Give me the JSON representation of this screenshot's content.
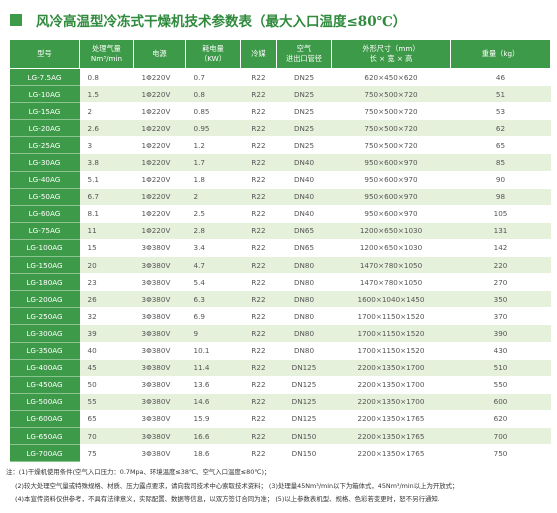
{
  "title": "风冷高温型冷冻式干燥机技术参数表（最大入口温度≤80℃）",
  "table": {
    "header": [
      [
        "型号"
      ],
      [
        "处理气量",
        "Nm³/min"
      ],
      [
        "电源"
      ],
      [
        "耗电量",
        "（KW）"
      ],
      [
        "冷媒"
      ],
      [
        "空气",
        "进出口管径"
      ],
      [
        "外形尺寸（mm）",
        "长 × 宽 × 高"
      ],
      [
        "重量（kg）"
      ]
    ],
    "rows": [
      [
        "LG-7.5AG",
        "0.8",
        "1Φ220V",
        "0.7",
        "R22",
        "DN25",
        "620×450×620",
        "46"
      ],
      [
        "LG-10AG",
        "1.5",
        "1Φ220V",
        "0.8",
        "R22",
        "DN25",
        "750×500×720",
        "51"
      ],
      [
        "LG-15AG",
        "2",
        "1Φ220V",
        "0.85",
        "R22",
        "DN25",
        "750×500×720",
        "53"
      ],
      [
        "LG-20AG",
        "2.6",
        "1Φ220V",
        "0.95",
        "R22",
        "DN25",
        "750×500×720",
        "62"
      ],
      [
        "LG-25AG",
        "3",
        "1Φ220V",
        "1.2",
        "R22",
        "DN25",
        "750×500×720",
        "65"
      ],
      [
        "LG-30AG",
        "3.8",
        "1Φ220V",
        "1.7",
        "R22",
        "DN40",
        "950×600×970",
        "85"
      ],
      [
        "LG-40AG",
        "5.1",
        "1Φ220V",
        "1.8",
        "R22",
        "DN40",
        "950×600×970",
        "90"
      ],
      [
        "LG-50AG",
        "6.7",
        "1Φ220V",
        "2",
        "R22",
        "DN40",
        "950×600×970",
        "98"
      ],
      [
        "LG-60AG",
        "8.1",
        "1Φ220V",
        "2.5",
        "R22",
        "DN40",
        "950×600×970",
        "105"
      ],
      [
        "LG-75AG",
        "11",
        "1Φ220V",
        "2.8",
        "R22",
        "DN65",
        "1200×650×1030",
        "131"
      ],
      [
        "LG-100AG",
        "15",
        "3Φ380V",
        "3.4",
        "R22",
        "DN65",
        "1200×650×1030",
        "142"
      ],
      [
        "LG-150AG",
        "20",
        "3Φ380V",
        "4.7",
        "R22",
        "DN80",
        "1470×780×1050",
        "220"
      ],
      [
        "LG-180AG",
        "23",
        "3Φ380V",
        "5.4",
        "R22",
        "DN80",
        "1470×780×1050",
        "270"
      ],
      [
        "LG-200AG",
        "26",
        "3Φ380V",
        "6.3",
        "R22",
        "DN80",
        "1600×1040×1450",
        "350"
      ],
      [
        "LG-250AG",
        "32",
        "3Φ380V",
        "6.9",
        "R22",
        "DN80",
        "1700×1150×1520",
        "370"
      ],
      [
        "LG-300AG",
        "39",
        "3Φ380V",
        "9",
        "R22",
        "DN80",
        "1700×1150×1520",
        "390"
      ],
      [
        "LG-350AG",
        "40",
        "3Φ380V",
        "10.1",
        "R22",
        "DN80",
        "1700×1150×1520",
        "430"
      ],
      [
        "LG-400AG",
        "45",
        "3Φ380V",
        "11.4",
        "R22",
        "DN125",
        "2200×1350×1700",
        "510"
      ],
      [
        "LG-450AG",
        "50",
        "3Φ380V",
        "13.6",
        "R22",
        "DN125",
        "2200×1350×1700",
        "550"
      ],
      [
        "LG-500AG",
        "55",
        "3Φ380V",
        "14.6",
        "R22",
        "DN125",
        "2200×1350×1700",
        "600"
      ],
      [
        "LG-600AG",
        "65",
        "3Φ380V",
        "15.9",
        "R22",
        "DN125",
        "2200×1350×1765",
        "620"
      ],
      [
        "LG-650AG",
        "70",
        "3Φ380V",
        "16.6",
        "R22",
        "DN150",
        "2200×1350×1765",
        "700"
      ],
      [
        "LG-700AG",
        "75",
        "3Φ380V",
        "18.6",
        "R22",
        "DN150",
        "2200×1350×1765",
        "750"
      ]
    ]
  },
  "notes": [
    "注：(1)干燥机使用条件(空气入口压力：0.7Mpa、环境温度≤38℃、空气入口温度≤80℃)；",
    "(2)较大处理空气量或特殊规格、材质、压力露点要求，请向我司技术中心索取技术资料；  (3)处理量45Nm³/min以下为箱体式，45Nm³/min以上为开放式；",
    "(4)本宣传资料仅供参考，不具有法律意义，实际配置、数据等信息，以双方签订合同为准；  (5)以上参数表机型、规格、色彩若变更时，恕不另行通知."
  ]
}
